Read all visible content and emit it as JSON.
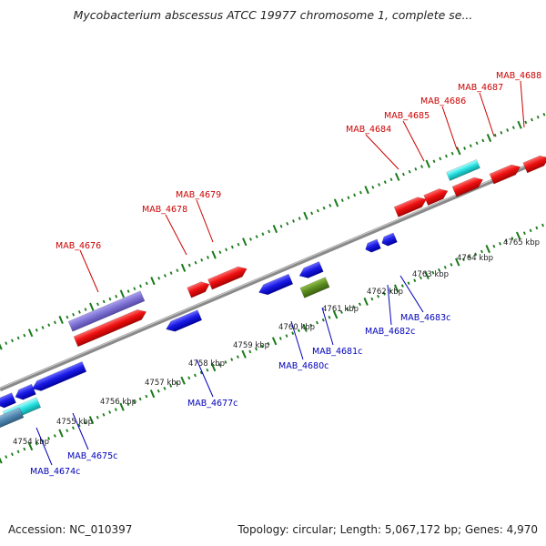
{
  "title": "Mycobacterium abscessus ATCC 19977 chromosome 1, complete se...",
  "footer": {
    "accession": "Accession: NC_010397",
    "summary": "Topology: circular; Length: 5,067,172 bp; Genes: 4,970"
  },
  "colors": {
    "forward_gene": "#ee1111",
    "reverse_gene": "#1a1ae6",
    "forward_label": "#cc0000",
    "reverse_label": "#0000bb",
    "track_purple": "#7b6fd0",
    "track_olive": "#5a8a1e",
    "track_cyan": "#22dddd",
    "backbone": "#8a8a8a",
    "tick": "#1a7a1a"
  },
  "kbp_ticks": [
    "4754 kbp",
    "4755 kbp",
    "4756 kbp",
    "4757 kbp",
    "4758 kbp",
    "4759 kbp",
    "4760 kbp",
    "4761 kbp",
    "4762 kbp",
    "4763 kbp",
    "4764 kbp",
    "4765 kbp"
  ],
  "forward_genes": [
    "MAB_4676",
    "MAB_4678",
    "MAB_4679",
    "MAB_4684",
    "MAB_4685",
    "MAB_4686",
    "MAB_4687",
    "MAB_4688"
  ],
  "reverse_genes": [
    "MAB_4674c",
    "MAB_4675c",
    "MAB_4677c",
    "MAB_4680c",
    "MAB_4681c",
    "MAB_4682c",
    "MAB_4683c"
  ]
}
